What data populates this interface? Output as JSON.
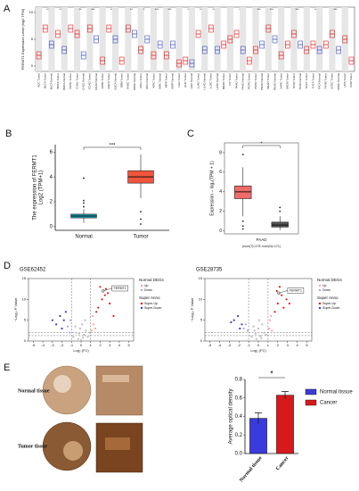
{
  "chart_data": [
    {
      "type": "box",
      "label": "A",
      "ylabel": "FERMT1 Expression Level (log2 TPM)",
      "categories": [
        "ACC Tumor",
        "BLCA Tumor",
        "BLCA Normal",
        "BRCA Tumor",
        "BRCA Normal",
        "CESC Tumor",
        "CHOL Tumor",
        "CHOL Normal",
        "COAD Tumor",
        "COAD Normal",
        "DLBC Tumor",
        "ESCA Tumor",
        "ESCA Normal",
        "GBM Tumor",
        "HNSC Tumor",
        "HNSC Normal",
        "KICH Tumor",
        "KICH Normal",
        "KIRC Tumor",
        "KIRC Normal",
        "KIRP Tumor",
        "KIRP Normal",
        "LGG Tumor",
        "LIHC Tumor",
        "LIHC Normal",
        "LUAD Tumor",
        "LUAD Normal",
        "LUSC Tumor",
        "LUSC Normal",
        "MESO Tumor",
        "OV Tumor",
        "PAAD Tumor",
        "PAAD Normal",
        "PCPG Tumor",
        "PRAD Tumor",
        "PRAD Normal",
        "READ Tumor",
        "READ Normal",
        "SARC Tumor",
        "SKCM Tumor",
        "STAD Tumor",
        "STAD Normal",
        "TGCT Tumor",
        "THCA Tumor",
        "THCA Normal",
        "THYM Tumor",
        "UCEC Tumor",
        "UCEC Normal",
        "UCS Tumor",
        "UVM Tumor"
      ],
      "values": [
        2,
        7,
        4,
        6,
        3,
        7,
        6,
        2,
        7,
        5,
        1,
        7,
        5,
        1,
        7,
        6,
        3,
        5,
        2,
        4,
        2,
        4,
        0.5,
        1,
        0.5,
        6,
        3,
        7,
        3,
        4,
        5,
        6,
        3,
        1,
        3,
        4,
        7,
        5,
        2,
        4,
        6,
        4,
        3,
        4,
        3,
        4,
        6,
        3,
        5,
        1
      ],
      "colors": [
        "#e41a1c",
        "#e41a1c",
        "#3b4cc0",
        "#e41a1c",
        "#3b4cc0",
        "#e41a1c",
        "#e41a1c",
        "#3b4cc0",
        "#e41a1c",
        "#3b4cc0",
        "#e41a1c",
        "#e41a1c",
        "#3b4cc0",
        "#e41a1c",
        "#e41a1c",
        "#3b4cc0",
        "#e41a1c",
        "#3b4cc0",
        "#e41a1c",
        "#3b4cc0",
        "#e41a1c",
        "#3b4cc0",
        "#e41a1c",
        "#e41a1c",
        "#3b4cc0",
        "#e41a1c",
        "#3b4cc0",
        "#e41a1c",
        "#3b4cc0",
        "#e41a1c",
        "#e41a1c",
        "#e41a1c",
        "#3b4cc0",
        "#e41a1c",
        "#e41a1c",
        "#3b4cc0",
        "#e41a1c",
        "#3b4cc0",
        "#e41a1c",
        "#e41a1c",
        "#e41a1c",
        "#3b4cc0",
        "#e41a1c",
        "#e41a1c",
        "#3b4cc0",
        "#e41a1c",
        "#e41a1c",
        "#3b4cc0",
        "#e41a1c",
        "#e41a1c"
      ],
      "stars": [
        null,
        "***",
        null,
        "***",
        null,
        null,
        "**",
        null,
        "***",
        null,
        null,
        "***",
        null,
        null,
        "**",
        null,
        "*",
        null,
        "***",
        null,
        "***",
        null,
        null,
        "**",
        null,
        "***",
        null,
        "***",
        null,
        null,
        null,
        "*",
        null,
        null,
        "***",
        null,
        "***",
        null,
        null,
        null,
        "***",
        null,
        null,
        "***",
        null,
        null,
        "***",
        null,
        null,
        null
      ],
      "ylim": [
        -1,
        11
      ],
      "yticks": [
        0,
        5,
        10
      ]
    },
    {
      "type": "box",
      "label": "B",
      "ylabel": [
        "The expression of FERMT1",
        "Log2 (TPM+1)"
      ],
      "annotation": "***",
      "categories": [
        "Normal",
        "Tumor"
      ],
      "colors": [
        "#1aa3b8",
        "#f0563c"
      ],
      "boxes": [
        {
          "low": 0.3,
          "q1": 0.7,
          "median": 0.85,
          "q3": 1.0,
          "high": 1.4,
          "outliers": [
            3.9,
            2.1,
            1.9,
            1.6
          ]
        },
        {
          "low": 2.3,
          "q1": 3.5,
          "median": 4.0,
          "q3": 4.5,
          "high": 5.8,
          "outliers": [
            1.2,
            0.6,
            0.2
          ]
        }
      ],
      "ylim": [
        -0.3,
        6.6
      ],
      "yticks": [
        0,
        2,
        4,
        6
      ]
    },
    {
      "type": "box",
      "label": "C",
      "ylabel": [
        "Expression – log₂(TPM + 1)"
      ],
      "annotation": "*",
      "xlabel": "PAAD",
      "note": "(num(T)=179; num(N)=171)",
      "colors": [
        "#f26b6b",
        "#555555"
      ],
      "boxes": [
        {
          "low": 1.5,
          "q1": 3.3,
          "median": 4.0,
          "q3": 4.6,
          "high": 6.5,
          "outliers": [
            7.8,
            1.0,
            0.5,
            0.2
          ]
        },
        {
          "low": 0.1,
          "q1": 0.4,
          "median": 0.6,
          "q3": 0.9,
          "high": 1.5,
          "outliers": [
            2.0,
            2.4
          ]
        }
      ],
      "ylim": [
        -0.3,
        9
      ],
      "yticks": [
        0,
        2,
        4,
        6,
        8
      ]
    },
    {
      "type": "scatter",
      "label": "D",
      "title": "GSE62452",
      "xlabel": "Log₂ (FC)",
      "ylabel": "−Log₁₀ P Value",
      "legend_groups": [
        "Normal DEGs",
        "Super Anno"
      ],
      "series": [
        {
          "color": "#bbbbbb",
          "x": [
            -0.8,
            -0.5,
            -0.3,
            -0.1,
            0,
            0.1,
            0.3,
            0.5,
            0.7,
            0.9,
            -0.6,
            0.4,
            0.2,
            -0.2
          ],
          "y": [
            1,
            2,
            0.5,
            3,
            0.2,
            4,
            1.5,
            2.5,
            1,
            2,
            3.5,
            5,
            0.8,
            1.8
          ]
        },
        {
          "name": "Up",
          "color": "#f4a6a6",
          "x": [
            1.1,
            1.3,
            1.2,
            1.5
          ],
          "y": [
            2.5,
            4,
            6,
            3
          ]
        },
        {
          "name": "Down",
          "color": "#a6a6f4",
          "x": [
            -1.2,
            -1.4,
            -1.1
          ],
          "y": [
            2,
            3.5,
            5
          ]
        },
        {
          "name": "Super-Up",
          "color": "#e41a1c",
          "x": [
            1.8,
            2.2,
            2.5,
            3,
            1.6,
            2.8,
            3.4,
            2,
            2.6
          ],
          "y": [
            8,
            10,
            11,
            9,
            7,
            11.5,
            6,
            13,
            12.5
          ]
        },
        {
          "name": "Super-Down",
          "color": "#3b3bc0",
          "x": [
            -1.8,
            -2.2,
            -2.6,
            -1.6,
            -2,
            -3
          ],
          "y": [
            5,
            6,
            4,
            7,
            3,
            5
          ]
        }
      ],
      "highlight": {
        "label": "FERMT1",
        "x": 2.3,
        "y": 12
      },
      "vlines": [
        -1,
        1
      ],
      "hlines": [
        1.3,
        2
      ],
      "xlim": [
        -5.5,
        5.5
      ],
      "xticks": [
        -5,
        -4,
        -3,
        -2,
        -1,
        0,
        1,
        2,
        3,
        4,
        5
      ],
      "ylim": [
        0,
        15
      ],
      "yticks": [
        0,
        5,
        10,
        15
      ]
    },
    {
      "type": "scatter",
      "title": "GSE28735",
      "xlabel": "Log₂ (FC)",
      "ylabel": "−Log₁₀ P Value",
      "legend_groups": [
        "Normal DEGs",
        "Super Anno"
      ],
      "series": [
        {
          "color": "#bbbbbb",
          "x": [
            -0.7,
            -0.4,
            -0.2,
            0,
            0.2,
            0.4,
            0.6,
            0.8,
            -0.5,
            0.1,
            0.3,
            -0.3
          ],
          "y": [
            1,
            2.5,
            0.5,
            3,
            1.2,
            4,
            2,
            1.5,
            3.5,
            5,
            0.7,
            1.8
          ]
        },
        {
          "name": "Up",
          "color": "#f4a6a6",
          "x": [
            1.1,
            1.2,
            1.4,
            1.3
          ],
          "y": [
            3,
            5,
            2.5,
            6
          ]
        },
        {
          "name": "Down",
          "color": "#a6a6f4",
          "x": [
            -1.1,
            -1.3,
            -1.5
          ],
          "y": [
            2.5,
            4,
            3
          ]
        },
        {
          "name": "Super-Up",
          "color": "#e41a1c",
          "x": [
            1.7,
            2,
            2.4,
            2.9,
            1.9,
            2.6,
            3.2,
            2.2
          ],
          "y": [
            7,
            9,
            11,
            10,
            12,
            8,
            9,
            13
          ]
        },
        {
          "name": "Super-Down",
          "color": "#3b3bc0",
          "x": [
            -1.7,
            -2.1,
            -2.5,
            -1.9,
            -2.8
          ],
          "y": [
            4,
            6,
            5,
            3,
            4.5
          ]
        }
      ],
      "highlight": {
        "label": "FERMT1",
        "x": 2.1,
        "y": 11.5
      },
      "vlines": [
        -1,
        1
      ],
      "hlines": [
        1.3,
        2
      ],
      "xlim": [
        -5.5,
        5.5
      ],
      "xticks": [
        -5,
        -4,
        -3,
        -2,
        -1,
        0,
        1,
        2,
        3,
        4,
        5
      ],
      "ylim": [
        0,
        15
      ],
      "yticks": [
        0,
        5,
        10,
        15
      ]
    },
    {
      "type": "bar",
      "label": "E",
      "ylabel": "Average optical density",
      "annotation": "*",
      "categories": [
        "Normal tissue",
        "Cancer"
      ],
      "values": [
        0.38,
        0.63
      ],
      "errors": [
        0.06,
        0.04
      ],
      "colors": [
        "#3b3bdb",
        "#d7191c"
      ],
      "ylim": [
        0,
        0.8
      ],
      "yticks": [
        {
          "value": 0,
          "label": "0.0"
        },
        {
          "value": 0.2,
          "label": "0.2"
        },
        {
          "value": 0.4,
          "label": "0.4"
        },
        {
          "value": 0.6,
          "label": "0.6"
        },
        {
          "value": 0.8,
          "label": "0.8"
        }
      ]
    }
  ],
  "tissue_images": {
    "rows": [
      "Normal tissue",
      "Tumor tissue"
    ]
  }
}
